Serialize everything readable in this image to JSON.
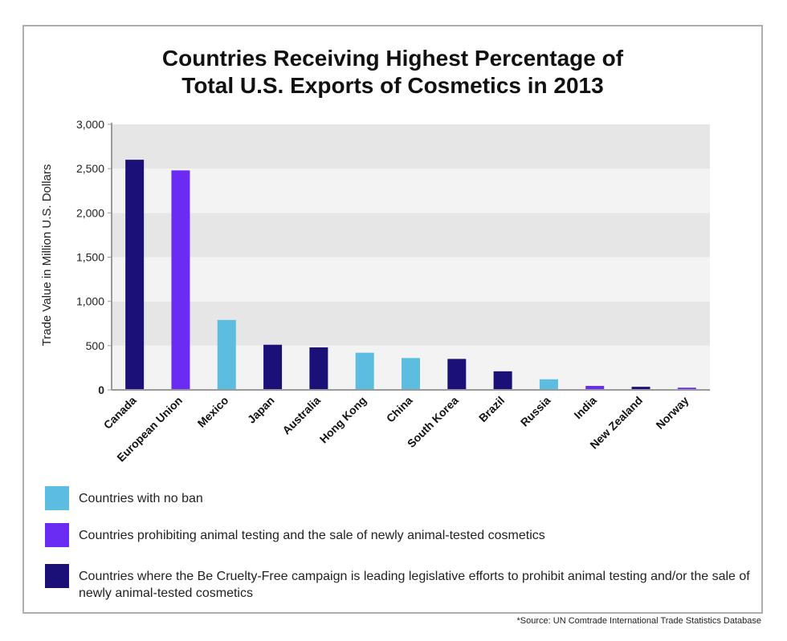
{
  "title_line1": "Countries Receiving Highest Percentage of",
  "title_line2": "Total U.S. Exports of Cosmetics in 2013",
  "source": "*Source: UN Comtrade International Trade Statistics Database",
  "colors": {
    "no_ban": "#5dbde1",
    "prohibiting": "#6a2bf2",
    "campaign": "#1a1078",
    "band_dark": "#e6e6e6",
    "band_light": "#f3f3f3"
  },
  "legend": [
    {
      "key": "no_ban",
      "label": "Countries with no ban"
    },
    {
      "key": "prohibiting",
      "label": "Countries prohibiting animal testing and the sale of newly animal-tested cosmetics"
    },
    {
      "key": "campaign",
      "label": "Countries where the Be Cruelty-Free campaign is leading legislative efforts to prohibit animal testing and/or the sale of newly animal-tested cosmetics"
    }
  ],
  "chart_data": {
    "type": "bar",
    "title": "Countries Receiving Highest Percentage of Total U.S. Exports of Cosmetics in 2013",
    "ylabel": "Trade Value in Million U.S. Dollars",
    "xlabel": "",
    "ylim": [
      0,
      3000
    ],
    "yticks": [
      "0",
      "500",
      "1,000",
      "1,500",
      "2,000",
      "2,500",
      "3,000"
    ],
    "ytick_values": [
      0,
      500,
      1000,
      1500,
      2000,
      2500,
      3000
    ],
    "categories": [
      "Canada",
      "European Union",
      "Mexico",
      "Japan",
      "Australia",
      "Hong Kong",
      "China",
      "South Korea",
      "Brazil",
      "Russia",
      "India",
      "New Zealand",
      "Norway"
    ],
    "values": [
      2600,
      2480,
      790,
      510,
      480,
      420,
      360,
      350,
      210,
      120,
      45,
      35,
      25
    ],
    "groups": [
      "campaign",
      "prohibiting",
      "no_ban",
      "campaign",
      "campaign",
      "no_ban",
      "no_ban",
      "campaign",
      "campaign",
      "no_ban",
      "prohibiting",
      "campaign",
      "prohibiting"
    ],
    "grid": "alternating horizontal bands",
    "legend_position": "bottom"
  }
}
